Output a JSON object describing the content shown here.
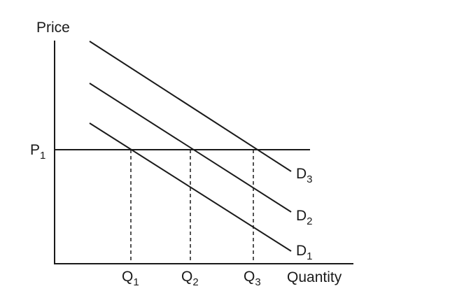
{
  "axes": {
    "y_label": "Price",
    "x_label": "Quantity"
  },
  "price_level": {
    "main": "P",
    "sub": "1"
  },
  "quantities": [
    {
      "main": "Q",
      "sub": "1"
    },
    {
      "main": "Q",
      "sub": "2"
    },
    {
      "main": "Q",
      "sub": "3"
    }
  ],
  "demand_curves": [
    {
      "main": "D",
      "sub": "1"
    },
    {
      "main": "D",
      "sub": "2"
    },
    {
      "main": "D",
      "sub": "3"
    }
  ],
  "colors": {
    "ink": "#1a1a1a",
    "background": "#ffffff"
  }
}
